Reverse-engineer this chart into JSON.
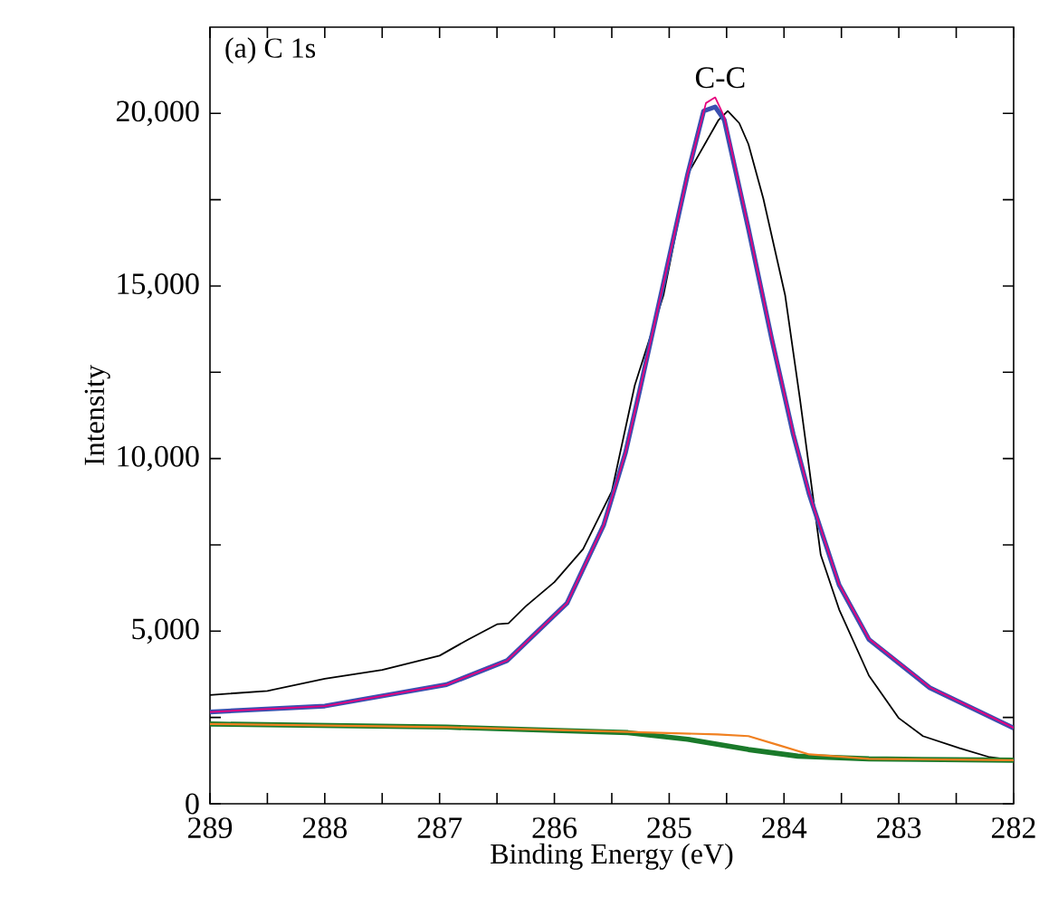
{
  "chart_data": {
    "type": "line",
    "xlabel": "Binding Energy (eV)",
    "ylabel": "Intensity",
    "annotations": [
      "(a) C 1s",
      "C-C"
    ],
    "xlim": [
      289,
      282
    ],
    "ylim": [
      0,
      22500
    ],
    "xticks": [
      289,
      {
        "value": 288.5,
        "label": null
      },
      288,
      {
        "value": 287.5,
        "label": null
      },
      287,
      {
        "value": 286.5,
        "label": null
      },
      286,
      {
        "value": 285.5,
        "label": null
      },
      285,
      {
        "value": 284.5,
        "label": null
      },
      284,
      {
        "value": 283.5,
        "label": null
      },
      283,
      {
        "value": 282.5,
        "label": null
      },
      282
    ],
    "yticks": [
      0,
      {
        "value": 2500,
        "label": null
      },
      {
        "value": 5000,
        "label": "5,000"
      },
      {
        "value": 7500,
        "label": null
      },
      {
        "value": 10000,
        "label": "10,000"
      },
      {
        "value": 12500,
        "label": null
      },
      {
        "value": 15000,
        "label": "15,000"
      },
      {
        "value": 17500,
        "label": null
      },
      {
        "value": 20000,
        "label": "20,000"
      }
    ],
    "grid": false,
    "line_style": "solid",
    "series": [
      {
        "color": "#000000",
        "x": [
          289,
          288.5,
          288,
          287.5,
          287,
          286.75,
          286.5,
          286.4,
          286.25,
          286,
          285.75,
          285.5,
          285.3,
          285.05,
          284.84,
          284.57,
          284.49,
          284.39,
          284.31,
          284.18,
          283.99,
          283.86,
          283.68,
          283.52,
          283.26,
          283.0,
          282.79,
          282.47,
          282.21,
          282.0
        ],
        "values": [
          3150,
          3270,
          3620,
          3880,
          4290,
          4760,
          5200,
          5230,
          5720,
          6420,
          7380,
          9050,
          12120,
          14730,
          18230,
          19810,
          20070,
          19720,
          19110,
          17530,
          14730,
          11700,
          7210,
          5630,
          3710,
          2480,
          1960,
          1610,
          1350,
          1260
        ]
      },
      {
        "color": "#3a4fb0",
        "x": [
          289,
          288,
          286.94,
          286.41,
          285.89,
          285.57,
          285.38,
          285.26,
          285.05,
          284.84,
          284.7,
          284.6,
          284.52,
          284.31,
          284.11,
          283.92,
          283.78,
          283.52,
          283.26,
          282.73,
          282.0
        ],
        "values": [
          2660,
          2830,
          3450,
          4150,
          5810,
          8080,
          10180,
          11930,
          15080,
          18230,
          20070,
          20190,
          19810,
          16660,
          13510,
          10710,
          8960,
          6340,
          4760,
          3360,
          2190
        ]
      },
      {
        "color": "#e6007e",
        "x": [
          289,
          288,
          286.94,
          286.41,
          285.89,
          285.57,
          285.38,
          285.26,
          285.05,
          284.84,
          284.68,
          284.6,
          284.52,
          284.31,
          284.11,
          283.92,
          283.78,
          283.52,
          283.26,
          282.73,
          282.0
        ],
        "values": [
          2660,
          2830,
          3450,
          4150,
          5810,
          8080,
          10180,
          11930,
          15080,
          18230,
          20300,
          20470,
          19900,
          16700,
          13550,
          10750,
          8990,
          6360,
          4780,
          3370,
          2200
        ]
      },
      {
        "color": "#1a7a2a",
        "x": [
          289,
          286.94,
          285.36,
          284.84,
          284.31,
          283.88,
          283.26,
          282.0
        ],
        "values": [
          2310,
          2220,
          2060,
          1870,
          1570,
          1380,
          1300,
          1260
        ]
      },
      {
        "color": "#f08020",
        "x": [
          289,
          286.94,
          285.36,
          284.58,
          284.31,
          284.05,
          283.78,
          283.26,
          282.0
        ],
        "values": [
          2310,
          2220,
          2080,
          2010,
          1960,
          1700,
          1430,
          1300,
          1260
        ]
      }
    ]
  }
}
